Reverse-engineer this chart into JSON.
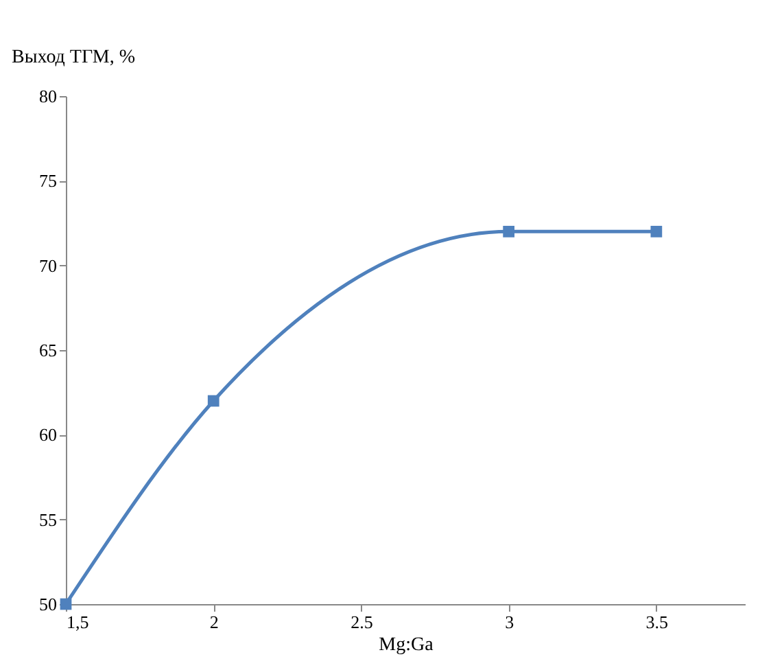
{
  "chart_data": {
    "type": "line",
    "xlabel": "Mg:Ga",
    "ylabel": "Выход ТГМ, %",
    "x": [
      1.5,
      2,
      3,
      3.5
    ],
    "series": [
      {
        "color": "#4f81bd",
        "values": [
          50,
          62,
          72,
          72
        ]
      }
    ],
    "xlim": [
      1.5,
      3.8
    ],
    "xticks": [
      {
        "value": 1.5,
        "label": "1,5"
      },
      2,
      2.5,
      3,
      3.5
    ],
    "ylim": [
      50,
      80
    ],
    "yticks": [
      50,
      55,
      60,
      65,
      70,
      75,
      80
    ],
    "marker": "square",
    "line_style": "solid",
    "grid": false
  }
}
